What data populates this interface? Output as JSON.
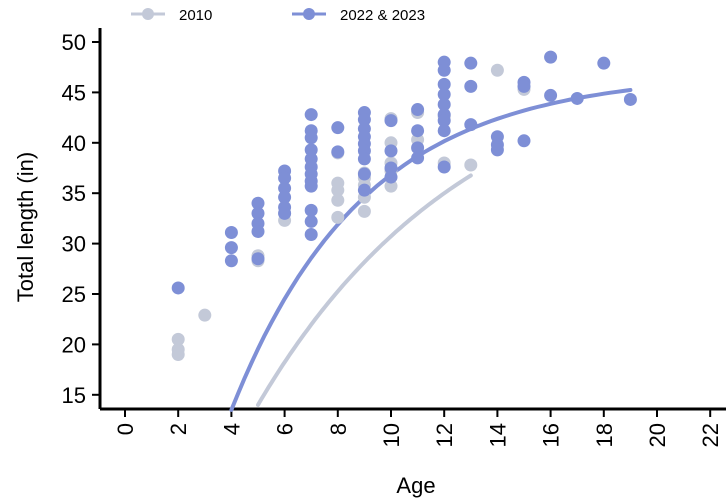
{
  "chart_data": {
    "type": "scatter",
    "title": "",
    "xlabel": "Age",
    "ylabel": "Total length (in)",
    "xlim": [
      0,
      22
    ],
    "ylim": [
      15,
      50
    ],
    "xticks": [
      "0",
      "2",
      "4",
      "6",
      "8",
      "10",
      "12",
      "14",
      "16",
      "18",
      "20",
      "22"
    ],
    "yticks": [
      "15",
      "20",
      "25",
      "30",
      "35",
      "40",
      "45",
      "50"
    ],
    "grid": false,
    "legend": "top-left",
    "series": [
      {
        "name": "2010",
        "color": "#c3c9d8",
        "points": [
          [
            2,
            20.5
          ],
          [
            2,
            19.5
          ],
          [
            2,
            19.0
          ],
          [
            3,
            22.9
          ],
          [
            5,
            28.3
          ],
          [
            5,
            28.8
          ],
          [
            6,
            33.0
          ],
          [
            6,
            32.3
          ],
          [
            8,
            39.0
          ],
          [
            8,
            36.0
          ],
          [
            8,
            35.3
          ],
          [
            8,
            34.3
          ],
          [
            8,
            32.6
          ],
          [
            9,
            37.0
          ],
          [
            9,
            36.5
          ],
          [
            9,
            35.8
          ],
          [
            9,
            34.6
          ],
          [
            9,
            33.2
          ],
          [
            10,
            42.4
          ],
          [
            10,
            40.0
          ],
          [
            10,
            38.0
          ],
          [
            10,
            37.2
          ],
          [
            10,
            35.7
          ],
          [
            11,
            43.0
          ],
          [
            11,
            40.3
          ],
          [
            12,
            42.6
          ],
          [
            12,
            38.0
          ],
          [
            13,
            37.8
          ],
          [
            14,
            47.2
          ],
          [
            15,
            45.3
          ]
        ],
        "curve_x": [
          5,
          13
        ],
        "curve": {
          "a": 50.0,
          "b": 36.0,
          "k": 0.125
        }
      },
      {
        "name": "2022 & 2023",
        "color": "#7e8fd6",
        "points": [
          [
            2,
            25.6
          ],
          [
            4,
            31.1
          ],
          [
            4,
            29.6
          ],
          [
            4,
            28.3
          ],
          [
            5,
            34.0
          ],
          [
            5,
            33.0
          ],
          [
            5,
            32.0
          ],
          [
            5,
            31.2
          ],
          [
            5,
            28.5
          ],
          [
            6,
            37.2
          ],
          [
            6,
            36.5
          ],
          [
            6,
            35.5
          ],
          [
            6,
            34.6
          ],
          [
            6,
            33.6
          ],
          [
            6,
            33.0
          ],
          [
            7,
            42.8
          ],
          [
            7,
            41.2
          ],
          [
            7,
            40.5
          ],
          [
            7,
            39.3
          ],
          [
            7,
            38.4
          ],
          [
            7,
            37.6
          ],
          [
            7,
            36.9
          ],
          [
            7,
            36.2
          ],
          [
            7,
            35.7
          ],
          [
            7,
            33.3
          ],
          [
            7,
            32.2
          ],
          [
            7,
            30.9
          ],
          [
            8,
            41.5
          ],
          [
            8,
            39.1
          ],
          [
            9,
            43.0
          ],
          [
            9,
            42.3
          ],
          [
            9,
            41.4
          ],
          [
            9,
            40.6
          ],
          [
            9,
            39.9
          ],
          [
            9,
            39.2
          ],
          [
            9,
            38.4
          ],
          [
            9,
            36.9
          ],
          [
            9,
            35.3
          ],
          [
            10,
            42.2
          ],
          [
            10,
            39.2
          ],
          [
            10,
            37.5
          ],
          [
            10,
            36.6
          ],
          [
            11,
            43.3
          ],
          [
            11,
            41.2
          ],
          [
            11,
            39.5
          ],
          [
            11,
            38.5
          ],
          [
            12,
            48.0
          ],
          [
            12,
            47.2
          ],
          [
            12,
            45.8
          ],
          [
            12,
            44.8
          ],
          [
            12,
            43.8
          ],
          [
            12,
            42.8
          ],
          [
            12,
            42.2
          ],
          [
            12,
            41.2
          ],
          [
            12,
            37.6
          ],
          [
            13,
            47.9
          ],
          [
            13,
            45.6
          ],
          [
            13,
            41.8
          ],
          [
            14,
            40.6
          ],
          [
            14,
            39.8
          ],
          [
            14,
            39.3
          ],
          [
            15,
            46.0
          ],
          [
            15,
            45.6
          ],
          [
            15,
            40.2
          ],
          [
            16,
            48.5
          ],
          [
            16,
            44.7
          ],
          [
            17,
            44.4
          ],
          [
            18,
            47.9
          ],
          [
            19,
            44.3
          ]
        ],
        "curve_x": [
          4,
          19
        ],
        "curve": {
          "a": 46.9,
          "b": 33.4,
          "k": 0.2
        }
      }
    ]
  }
}
